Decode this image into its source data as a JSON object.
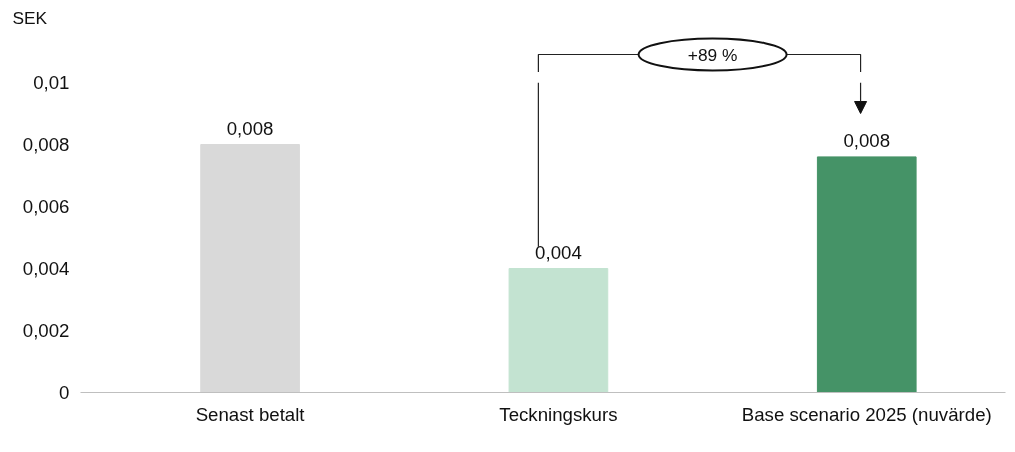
{
  "chart_data": {
    "type": "bar",
    "ylabel": "SEK",
    "categories": [
      "Senast betalt",
      "Teckningskurs",
      "Base scenario 2025 (nuvärde)"
    ],
    "values": [
      0.008,
      0.004,
      0.0076
    ],
    "colors": [
      "#d9d9d9",
      "#c3e3d1",
      "#459367"
    ],
    "value_labels": [
      "0,008",
      "0,004",
      "0,008"
    ],
    "ylim": [
      0,
      0.01
    ],
    "yticks": [
      {
        "value": 0,
        "label": "0"
      },
      {
        "value": 0.002,
        "label": "0,002"
      },
      {
        "value": 0.004,
        "label": "0,004"
      },
      {
        "value": 0.006,
        "label": "0,006"
      },
      {
        "value": 0.008,
        "label": "0,008"
      },
      {
        "value": 0.01,
        "label": "0,01"
      }
    ],
    "annotations": [
      "+89 %"
    ],
    "grid": false
  }
}
